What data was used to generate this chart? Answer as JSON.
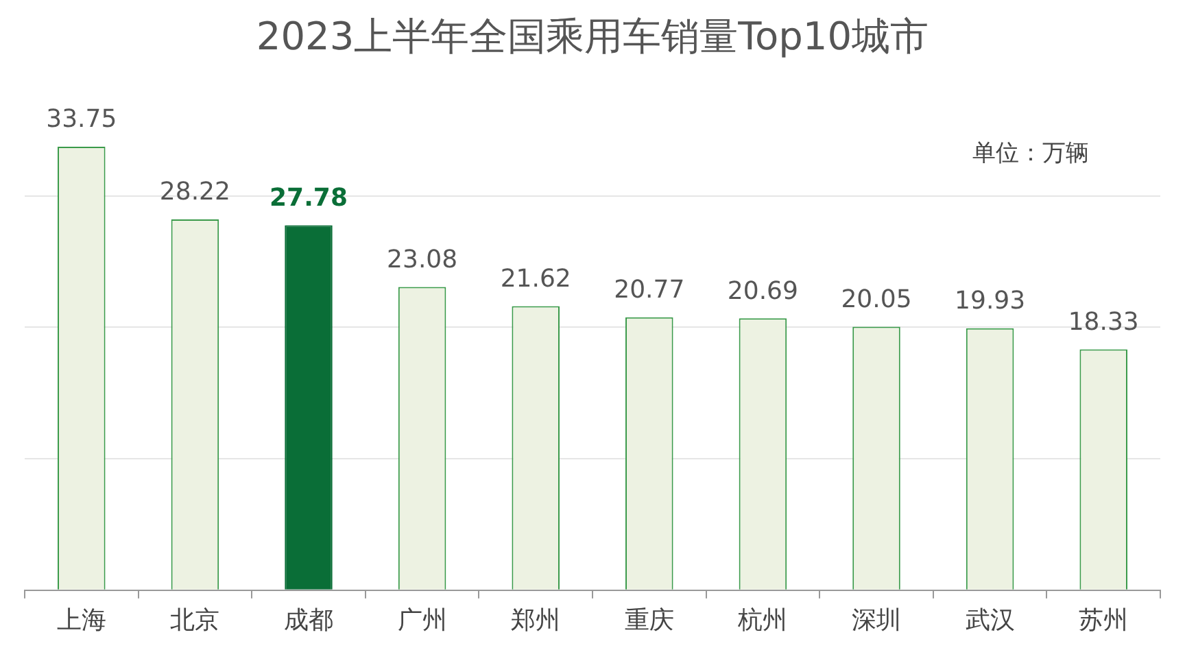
{
  "chart_data": {
    "type": "bar",
    "title": "2023上半年全国乘用车销量Top10城市",
    "categories": [
      "上海",
      "北京",
      "成都",
      "广州",
      "郑州",
      "重庆",
      "杭州",
      "深圳",
      "武汉",
      "苏州"
    ],
    "values": [
      33.75,
      28.22,
      27.78,
      23.08,
      21.62,
      20.77,
      20.69,
      20.05,
      19.93,
      18.33
    ],
    "colors": [
      "#edf2e2",
      "#edf2e2",
      "#0a6e37",
      "#edf2e2",
      "#edf2e2",
      "#edf2e2",
      "#edf2e2",
      "#edf2e2",
      "#edf2e2",
      "#edf2e2"
    ],
    "yticks": [
      {
        "value": 0,
        "label": null
      },
      {
        "value": 10,
        "label": null
      },
      {
        "value": 20,
        "label": null
      },
      {
        "value": 30,
        "label": null
      }
    ],
    "grid": "y",
    "tick_labels": "x",
    "legend": false,
    "data_labels": true,
    "annotations": [
      "单位：万辆"
    ]
  }
}
